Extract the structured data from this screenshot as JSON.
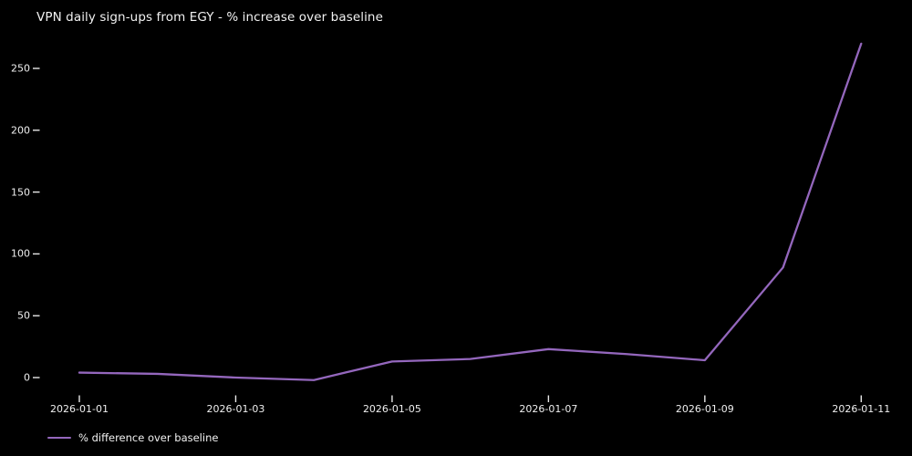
{
  "title": "VPN daily sign-ups from EGY - % increase over baseline",
  "legend": {
    "label": "% difference over baseline"
  },
  "colors": {
    "background": "#000000",
    "line": "#9467bd",
    "text": "#f2f2f2",
    "tick": "#e8e8e8"
  },
  "chart_data": {
    "type": "line",
    "title": "VPN daily sign-ups from EGY - % increase over baseline",
    "xlabel": "",
    "ylabel": "",
    "x": [
      "2026-01-01",
      "2026-01-02",
      "2026-01-03",
      "2026-01-04",
      "2026-01-05",
      "2026-01-06",
      "2026-01-07",
      "2026-01-08",
      "2026-01-09",
      "2026-01-10",
      "2026-01-11"
    ],
    "series": [
      {
        "name": "% difference over baseline",
        "values": [
          4,
          3,
          0,
          -2,
          13,
          15,
          23,
          19,
          14,
          89,
          270
        ]
      }
    ],
    "x_tick_labels": [
      "2026-01-01",
      "2026-01-03",
      "2026-01-05",
      "2026-01-07",
      "2026-01-09",
      "2026-01-11"
    ],
    "y_ticks": [
      0,
      50,
      100,
      150,
      200,
      250
    ],
    "ylim": [
      -25,
      285
    ],
    "grid": false,
    "legend_position": "lower-left-outside"
  }
}
